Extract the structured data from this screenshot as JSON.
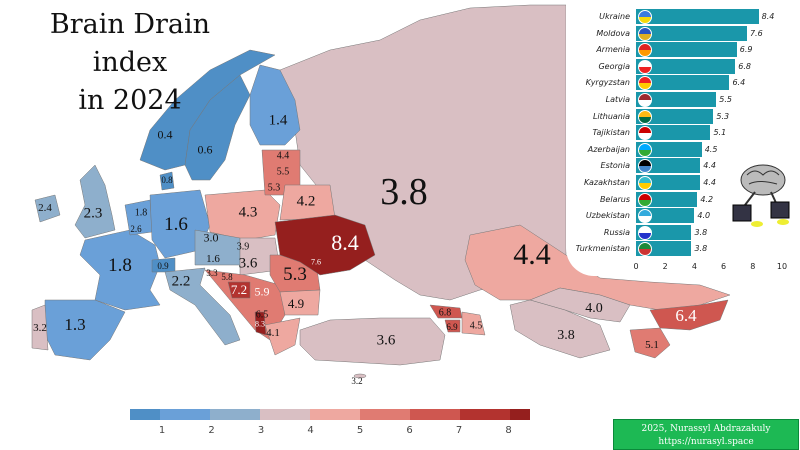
{
  "title_line1": "Brain Drain index",
  "title_line2": "in 2024",
  "map_labels": {
    "norway": "0.4",
    "sweden": "0.6",
    "finland": "1.4",
    "denmark": "0.8",
    "ireland": "2.4",
    "uk": "2.3",
    "netherlands": "1.8",
    "belgium": "2.6",
    "germany": "1.6",
    "france": "1.8",
    "switzerland": "0.9",
    "italy": "2.2",
    "czechia": "3.0",
    "austria": "1.6",
    "slovakia": "3.9",
    "hungary": "3.6",
    "slovenia": "3.3",
    "croatia": "5.8",
    "bosnia": "7.2",
    "serbia": "5.9",
    "romania": "5.3",
    "bulgaria": "4.9",
    "north_macedonia": "6.5",
    "albania": "8.3",
    "greece": "4.1",
    "poland": "4.3",
    "estonia": "4.4",
    "latvia": "5.5",
    "lithuania": "5.3",
    "belarus": "4.2",
    "ukraine": "8.4",
    "moldova": "7.6",
    "russia": "3.8",
    "kazakhstan": "4.4",
    "turkey": "3.6",
    "cyprus": "3.2",
    "georgia": "6.8",
    "armenia": "6.9",
    "azerbaijan": "4.5",
    "uzbekistan": "4.0",
    "turkmenistan": "3.8",
    "kyrgyzstan": "6.4",
    "tajikistan": "5.1",
    "portugal": "3.2",
    "spain": "1.3"
  },
  "chart_data": {
    "type": "bar",
    "orientation": "horizontal",
    "categories": [
      "Ukraine",
      "Moldova",
      "Armenia",
      "Georgia",
      "Kyrgyzstan",
      "Latvia",
      "Lithuania",
      "Tajikistan",
      "Azerbaijan",
      "Estonia",
      "Kazakhstan",
      "Belarus",
      "Uzbekistan",
      "Russia",
      "Turkmenistan"
    ],
    "values": [
      8.4,
      7.6,
      6.9,
      6.8,
      6.4,
      5.5,
      5.3,
      5.1,
      4.5,
      4.4,
      4.4,
      4.2,
      4.0,
      3.8,
      3.8
    ],
    "value_labels": [
      "8.4",
      "7.6",
      "6.9",
      "6.8",
      "6.4",
      "5.5",
      "5.3",
      "5.1",
      "4.5",
      "4.4",
      "4.4",
      "4.2",
      "4.0",
      "3.8",
      "3.8"
    ],
    "xlim": [
      0,
      10
    ],
    "xticks": [
      "0",
      "2",
      "4",
      "6",
      "8",
      "10"
    ],
    "bar_color": "#1a97aa"
  },
  "legend": {
    "colors": [
      "#4f8fc6",
      "#6aa0d8",
      "#8eafcc",
      "#d9bfc3",
      "#eea8a0",
      "#e07b72",
      "#cf5750",
      "#b3332f",
      "#951f1e"
    ],
    "ticks": [
      "1",
      "2",
      "3",
      "4",
      "5",
      "6",
      "7",
      "8"
    ]
  },
  "credit": {
    "line1": "2025, Nurassyl Abdrazakuly",
    "line2": "https://nurasyl.space"
  }
}
